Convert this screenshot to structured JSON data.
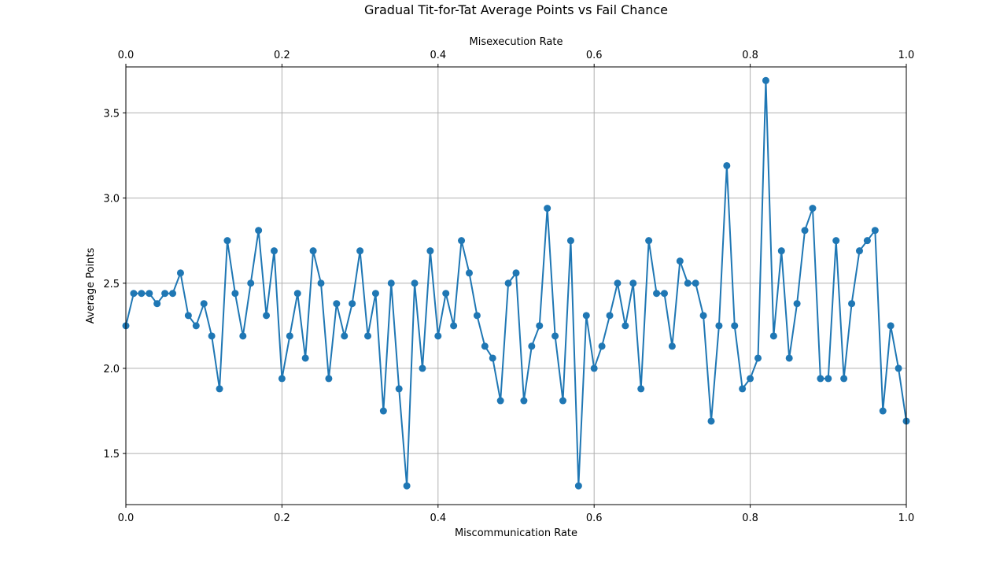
{
  "chart_data": {
    "type": "line",
    "title": "Gradual Tit-for-Tat Average Points vs Fail Chance",
    "xlabel": "Miscommunication Rate",
    "x2label": "Misexecution Rate",
    "ylabel": "Average Points",
    "xlim": [
      0.0,
      1.0
    ],
    "ylim": [
      1.2,
      3.77
    ],
    "grid": true,
    "color": "#1f77b4",
    "xticks": [
      0.0,
      0.2,
      0.4,
      0.6,
      0.8,
      1.0
    ],
    "xtick_labels": [
      "0.0",
      "0.2",
      "0.4",
      "0.6",
      "0.8",
      "1.0"
    ],
    "yticks": [
      1.5,
      2.0,
      2.5,
      3.0,
      3.5
    ],
    "ytick_labels": [
      "1.5",
      "2.0",
      "2.5",
      "3.0",
      "3.5"
    ],
    "x": [
      0.0,
      0.01,
      0.02,
      0.03,
      0.04,
      0.05,
      0.06,
      0.07,
      0.08,
      0.09,
      0.1,
      0.11,
      0.12,
      0.13,
      0.14,
      0.15,
      0.16,
      0.17,
      0.18,
      0.19,
      0.2,
      0.21,
      0.22,
      0.23,
      0.24,
      0.25,
      0.26,
      0.27,
      0.28,
      0.29,
      0.3,
      0.31,
      0.32,
      0.33,
      0.34,
      0.35,
      0.36,
      0.37,
      0.38,
      0.39,
      0.4,
      0.41,
      0.42,
      0.43,
      0.44,
      0.45,
      0.46,
      0.47,
      0.48,
      0.49,
      0.5,
      0.51,
      0.52,
      0.53,
      0.54,
      0.55,
      0.56,
      0.57,
      0.58,
      0.59,
      0.6,
      0.61,
      0.62,
      0.63,
      0.64,
      0.65,
      0.66,
      0.67,
      0.68,
      0.69,
      0.7,
      0.71,
      0.72,
      0.73,
      0.74,
      0.75,
      0.76,
      0.77,
      0.78,
      0.79,
      0.8,
      0.81,
      0.82,
      0.83,
      0.84,
      0.85,
      0.86,
      0.87,
      0.88,
      0.89,
      0.9,
      0.91,
      0.92,
      0.93,
      0.94,
      0.95,
      0.96,
      0.97,
      0.98,
      0.99,
      1.0
    ],
    "y": [
      2.25,
      2.44,
      2.44,
      2.44,
      2.38,
      2.44,
      2.44,
      2.56,
      2.31,
      2.25,
      2.38,
      2.19,
      1.88,
      2.75,
      2.44,
      2.19,
      2.5,
      2.81,
      2.31,
      2.69,
      1.94,
      2.19,
      2.44,
      2.06,
      2.69,
      2.5,
      1.94,
      2.38,
      2.19,
      2.38,
      2.69,
      2.19,
      2.44,
      1.75,
      2.5,
      1.88,
      1.31,
      2.5,
      2.0,
      2.69,
      2.19,
      2.44,
      2.25,
      2.75,
      2.56,
      2.31,
      2.13,
      2.06,
      1.81,
      2.5,
      2.56,
      1.81,
      2.13,
      2.25,
      2.94,
      2.19,
      1.81,
      2.75,
      1.31,
      2.31,
      2.0,
      2.13,
      2.31,
      2.5,
      2.25,
      2.5,
      1.88,
      2.75,
      2.44,
      2.44,
      2.13,
      2.63,
      2.5,
      2.5,
      2.31,
      1.69,
      2.25,
      3.19,
      2.25,
      1.88,
      1.94,
      2.06,
      3.69,
      2.19,
      2.69,
      2.06,
      2.38,
      2.81,
      2.94,
      1.94,
      1.94,
      2.75,
      1.94,
      2.38,
      2.69,
      2.75,
      2.81,
      1.75,
      2.25,
      2.0,
      1.69
    ]
  }
}
